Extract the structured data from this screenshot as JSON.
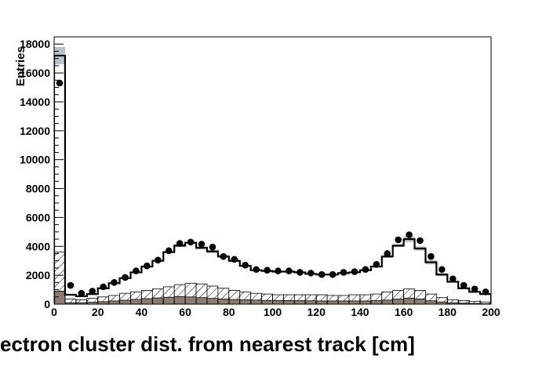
{
  "chart_data": {
    "type": "bar",
    "title": "",
    "xlabel": "ectron cluster dist. from nearest track [cm]",
    "ylabel": "Entries",
    "xlim": [
      0,
      200
    ],
    "ylim": [
      0,
      18500
    ],
    "x_ticks": [
      0,
      20,
      40,
      60,
      80,
      100,
      120,
      140,
      160,
      180,
      200
    ],
    "y_ticks": [
      0,
      2000,
      4000,
      6000,
      8000,
      10000,
      12000,
      14000,
      16000,
      18000
    ],
    "bin_edges": [
      0,
      5,
      10,
      15,
      20,
      25,
      30,
      35,
      40,
      45,
      50,
      55,
      60,
      65,
      70,
      75,
      80,
      85,
      90,
      95,
      100,
      105,
      110,
      115,
      120,
      125,
      130,
      135,
      140,
      145,
      150,
      155,
      160,
      165,
      170,
      175,
      180,
      185,
      190,
      195,
      200
    ],
    "series": [
      {
        "style": "data-points",
        "color": "#000000",
        "values": [
          15300,
          1300,
          750,
          900,
          1200,
          1500,
          1850,
          2300,
          2650,
          3050,
          3700,
          4200,
          4300,
          4150,
          3950,
          3300,
          3100,
          2700,
          2400,
          2350,
          2300,
          2300,
          2200,
          2150,
          2050,
          2050,
          2200,
          2250,
          2400,
          2750,
          3500,
          4450,
          4800,
          4400,
          3300,
          2400,
          1750,
          1300,
          1050,
          850
        ]
      },
      {
        "style": "black-outline-histogram",
        "color": "#000000",
        "values": [
          17200,
          650,
          550,
          700,
          1100,
          1450,
          1800,
          2200,
          2600,
          3000,
          3600,
          4050,
          4250,
          3900,
          3650,
          3300,
          3000,
          2650,
          2350,
          2300,
          2250,
          2250,
          2200,
          2100,
          2050,
          2050,
          2150,
          2200,
          2350,
          2600,
          3300,
          4050,
          4500,
          3850,
          2900,
          2050,
          1550,
          1100,
          850,
          700
        ]
      },
      {
        "style": "grey-uncertainty-band",
        "color": "#b8c4cc",
        "values": [
          17800,
          700,
          550,
          700,
          1150,
          1500,
          1850,
          2250,
          2650,
          3050,
          3650,
          4150,
          4300,
          4000,
          3750,
          3400,
          3100,
          2700,
          2400,
          2350,
          2300,
          2300,
          2250,
          2150,
          2100,
          2100,
          2200,
          2250,
          2400,
          2650,
          3400,
          4150,
          4700,
          4000,
          3050,
          2150,
          1600,
          1150,
          900,
          750
        ]
      },
      {
        "style": "hatched-histogram",
        "color": "#000000",
        "values": [
          3600,
          350,
          300,
          400,
          500,
          600,
          750,
          850,
          950,
          1050,
          1200,
          1350,
          1450,
          1400,
          1250,
          1100,
          950,
          850,
          750,
          700,
          650,
          650,
          650,
          650,
          650,
          600,
          600,
          650,
          650,
          700,
          850,
          950,
          1050,
          950,
          700,
          450,
          300,
          250,
          200,
          150
        ]
      },
      {
        "style": "brown-filled-histogram",
        "color": "#8c7b70",
        "values": [
          900,
          100,
          100,
          130,
          170,
          220,
          270,
          330,
          380,
          430,
          480,
          520,
          500,
          450,
          400,
          360,
          320,
          300,
          280,
          260,
          250,
          250,
          240,
          230,
          220,
          220,
          220,
          220,
          220,
          240,
          280,
          350,
          420,
          360,
          230,
          150,
          100,
          70,
          50,
          30
        ]
      }
    ]
  }
}
